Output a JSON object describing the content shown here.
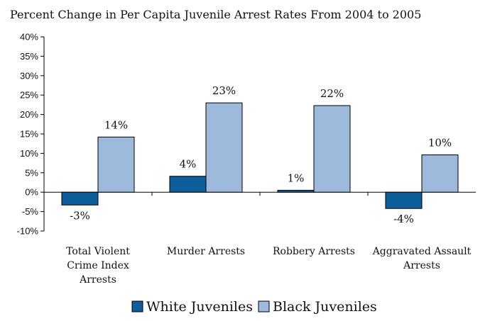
{
  "chart_data": {
    "type": "bar",
    "title": "Percent Change in Per Capita Juvenile Arrest Rates From 2004 to 2005",
    "xlabel": "",
    "ylabel": "",
    "categories": [
      [
        "Total Violent",
        "Crime Index",
        "Arrests"
      ],
      [
        "Murder Arrests"
      ],
      [
        "Robbery Arrests"
      ],
      [
        "Aggravated Assault",
        "Arrests"
      ]
    ],
    "series": [
      {
        "name": "White Juveniles",
        "color": "#0f5e9c",
        "values": [
          -3.3,
          4.1,
          0.5,
          -4.2
        ],
        "labels": [
          "-3%",
          "4%",
          "1%",
          "-4%"
        ]
      },
      {
        "name": "Black Juveniles",
        "color": "#9db9dc",
        "values": [
          14.2,
          23.0,
          22.3,
          9.6
        ],
        "labels": [
          "14%",
          "23%",
          "22%",
          "10%"
        ]
      }
    ],
    "ylim": [
      -10,
      40
    ],
    "yticks": [
      -10,
      -5,
      0,
      5,
      10,
      15,
      20,
      25,
      30,
      35,
      40
    ],
    "ytick_labels": [
      "-10%",
      "-5%",
      "0%",
      "5%",
      "10%",
      "15%",
      "20%",
      "25%",
      "30%",
      "35%",
      "40%"
    ],
    "grid": false,
    "legend": "bottom-center"
  }
}
